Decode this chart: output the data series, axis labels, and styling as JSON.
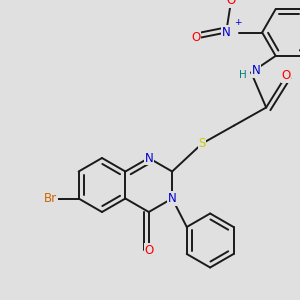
{
  "bg_color": "#e0e0e0",
  "bond_color": "#1a1a1a",
  "bond_width": 1.4,
  "atom_colors": {
    "N": "#0000cc",
    "O": "#ff0000",
    "S": "#cccc00",
    "Br": "#cc6600",
    "H": "#008080",
    "C": "#1a1a1a"
  },
  "font_size": 8.5,
  "fig_size": [
    3.0,
    3.0
  ],
  "dpi": 100
}
